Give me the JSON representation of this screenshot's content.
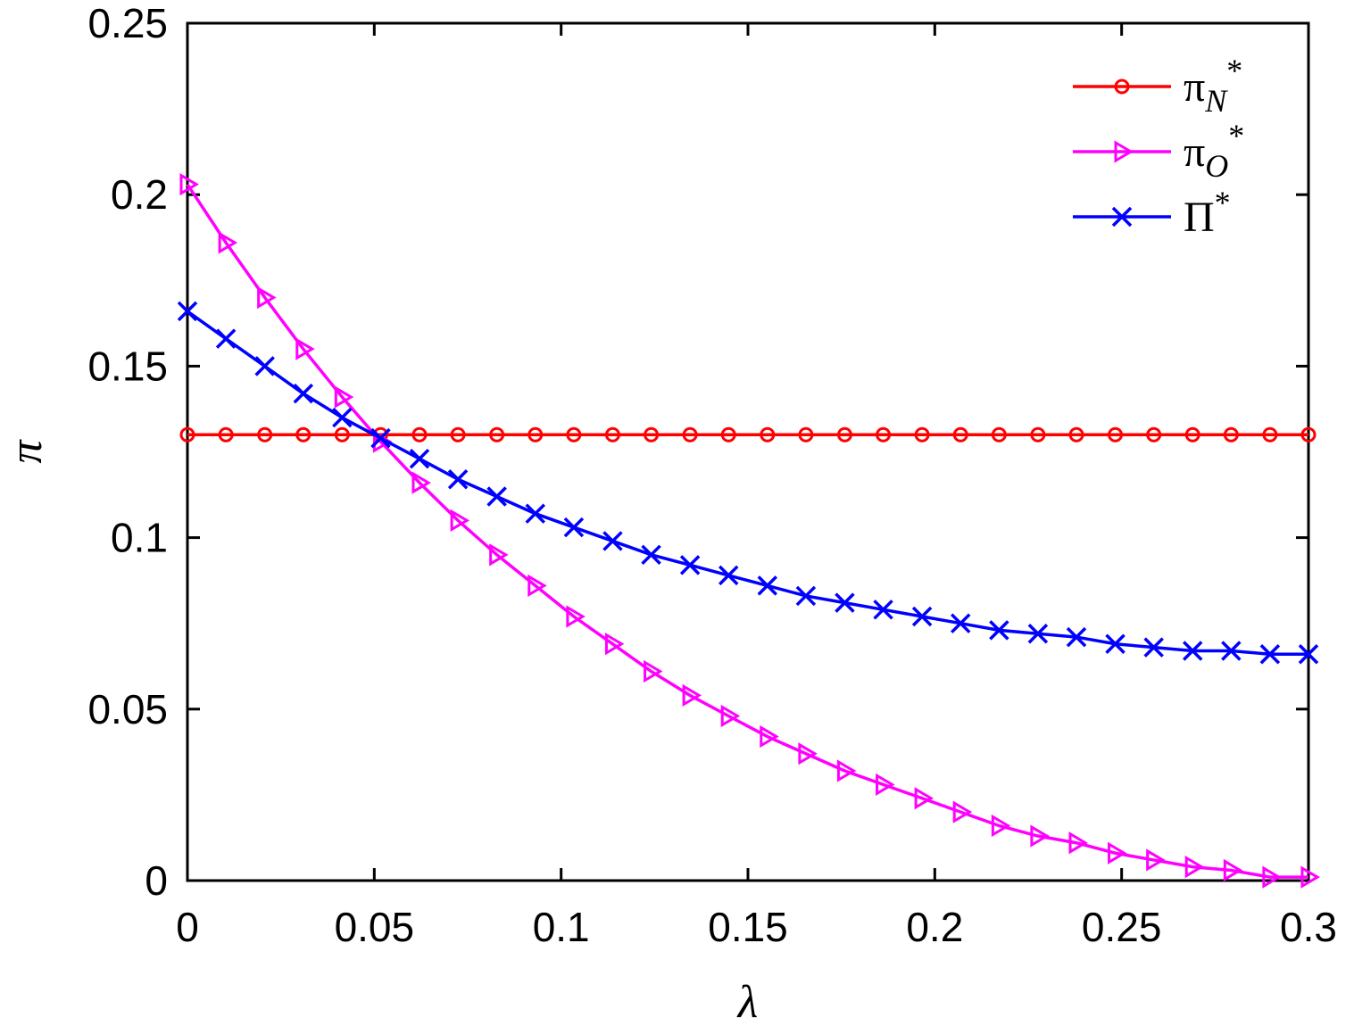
{
  "chart_data": {
    "type": "line",
    "title": "",
    "xlabel": "λ",
    "ylabel": "π",
    "xlim": [
      0,
      0.3
    ],
    "ylim": [
      0,
      0.25
    ],
    "xticks": [
      "0",
      "0.05",
      "0.1",
      "0.15",
      "0.2",
      "0.25",
      "0.3"
    ],
    "yticks": [
      "0",
      "0.05",
      "0.1",
      "0.15",
      "0.2",
      "0.25"
    ],
    "grid": false,
    "legend_position": "top-right",
    "x": [
      0,
      0.0103,
      0.0207,
      0.031,
      0.0414,
      0.0517,
      0.0621,
      0.0724,
      0.0828,
      0.0931,
      0.1034,
      0.1138,
      0.1241,
      0.1345,
      0.1448,
      0.1552,
      0.1655,
      0.1759,
      0.1862,
      0.1966,
      0.2069,
      0.2172,
      0.2276,
      0.2379,
      0.2483,
      0.2586,
      0.269,
      0.2793,
      0.2897,
      0.3
    ],
    "series": [
      {
        "name": "π",
        "sub": "N",
        "sup": "*",
        "color": "#ff0000",
        "marker": "circle",
        "values": [
          0.13,
          0.13,
          0.13,
          0.13,
          0.13,
          0.13,
          0.13,
          0.13,
          0.13,
          0.13,
          0.13,
          0.13,
          0.13,
          0.13,
          0.13,
          0.13,
          0.13,
          0.13,
          0.13,
          0.13,
          0.13,
          0.13,
          0.13,
          0.13,
          0.13,
          0.13,
          0.13,
          0.13,
          0.13,
          0.13
        ]
      },
      {
        "name": "π",
        "sub": "O",
        "sup": "*",
        "color": "#ff00ff",
        "marker": "triangle-right",
        "values": [
          0.203,
          0.186,
          0.17,
          0.155,
          0.141,
          0.128,
          0.116,
          0.105,
          0.095,
          0.086,
          0.077,
          0.069,
          0.061,
          0.054,
          0.048,
          0.042,
          0.037,
          0.032,
          0.028,
          0.024,
          0.02,
          0.016,
          0.013,
          0.011,
          0.008,
          0.006,
          0.004,
          0.003,
          0.001,
          0.001
        ]
      },
      {
        "name": "Π",
        "sub": "",
        "sup": "*",
        "color": "#0000ff",
        "marker": "x",
        "values": [
          0.166,
          0.158,
          0.15,
          0.142,
          0.135,
          0.129,
          0.123,
          0.117,
          0.112,
          0.107,
          0.103,
          0.099,
          0.095,
          0.092,
          0.089,
          0.086,
          0.083,
          0.081,
          0.079,
          0.077,
          0.075,
          0.073,
          0.072,
          0.071,
          0.069,
          0.068,
          0.067,
          0.067,
          0.066,
          0.066
        ]
      }
    ]
  }
}
